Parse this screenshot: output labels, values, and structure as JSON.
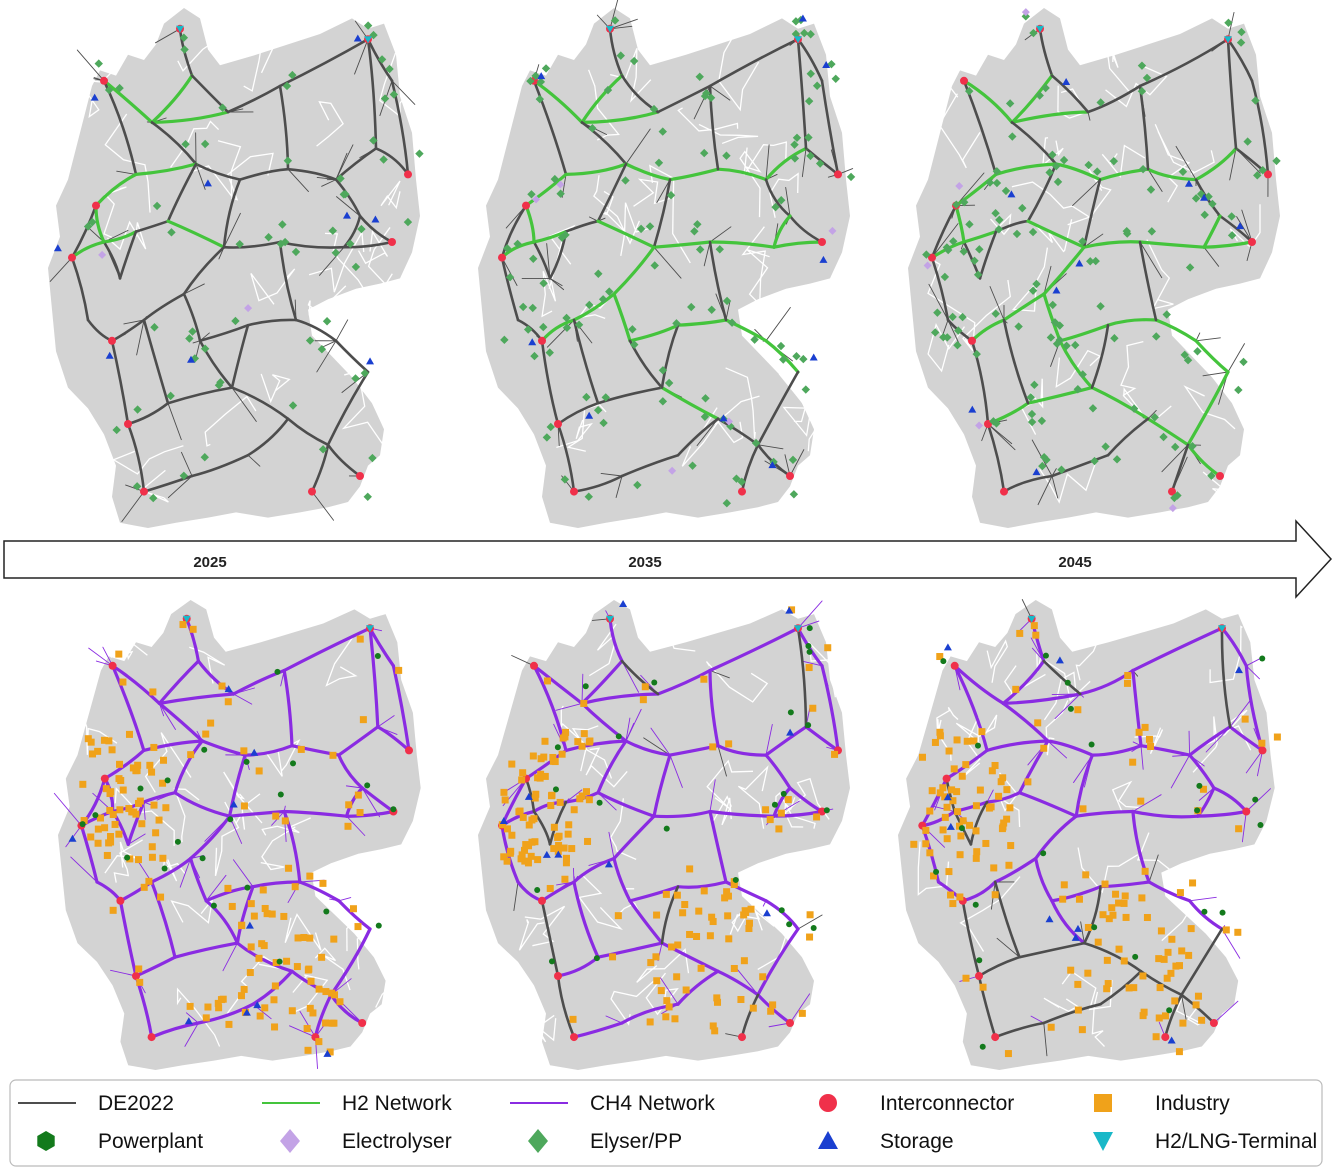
{
  "timeline": {
    "years": [
      "2025",
      "2035",
      "2045"
    ]
  },
  "colors": {
    "land": "#d3d3d3",
    "borders": "#ffffff",
    "de2022": "#4d4d4d",
    "h2": "#44c43c",
    "ch4": "#8a2be2",
    "interconnector": "#f0304a",
    "powerplant": "#137a1c",
    "electrolyser": "#c3a3e6",
    "elyser_pp": "#4ea85c",
    "storage": "#1a3fd0",
    "industry": "#f0a21a",
    "terminal": "#19b8c8"
  },
  "legend": {
    "items": [
      {
        "label": "DE2022",
        "symbol": "line",
        "color_key": "de2022"
      },
      {
        "label": "H2 Network",
        "symbol": "line",
        "color_key": "h2"
      },
      {
        "label": "CH4 Network",
        "symbol": "line",
        "color_key": "ch4"
      },
      {
        "label": "Interconnector",
        "symbol": "circle",
        "color_key": "interconnector"
      },
      {
        "label": "Industry",
        "symbol": "square",
        "color_key": "industry"
      },
      {
        "label": "Powerplant",
        "symbol": "hexagon",
        "color_key": "powerplant"
      },
      {
        "label": "Electrolyser",
        "symbol": "diamond",
        "color_key": "electrolyser"
      },
      {
        "label": "Elyser/PP",
        "symbol": "diamond",
        "color_key": "elyser_pp"
      },
      {
        "label": "Storage",
        "symbol": "triangle",
        "color_key": "storage"
      },
      {
        "label": "H2/LNG-Terminal",
        "symbol": "triangle-down",
        "color_key": "terminal"
      }
    ]
  },
  "maps": [
    {
      "id": "h2-2025",
      "row": "h2",
      "year": "2025",
      "h2_level": 0.25
    },
    {
      "id": "h2-2035",
      "row": "h2",
      "year": "2035",
      "h2_level": 0.75
    },
    {
      "id": "h2-2045",
      "row": "h2",
      "year": "2045",
      "h2_level": 0.9
    },
    {
      "id": "ch4-2025",
      "row": "ch4",
      "year": "2025",
      "ch4_level": 1.0
    },
    {
      "id": "ch4-2035",
      "row": "ch4",
      "year": "2035",
      "ch4_level": 0.85
    },
    {
      "id": "ch4-2045",
      "row": "ch4",
      "year": "2045",
      "ch4_level": 0.7
    }
  ]
}
